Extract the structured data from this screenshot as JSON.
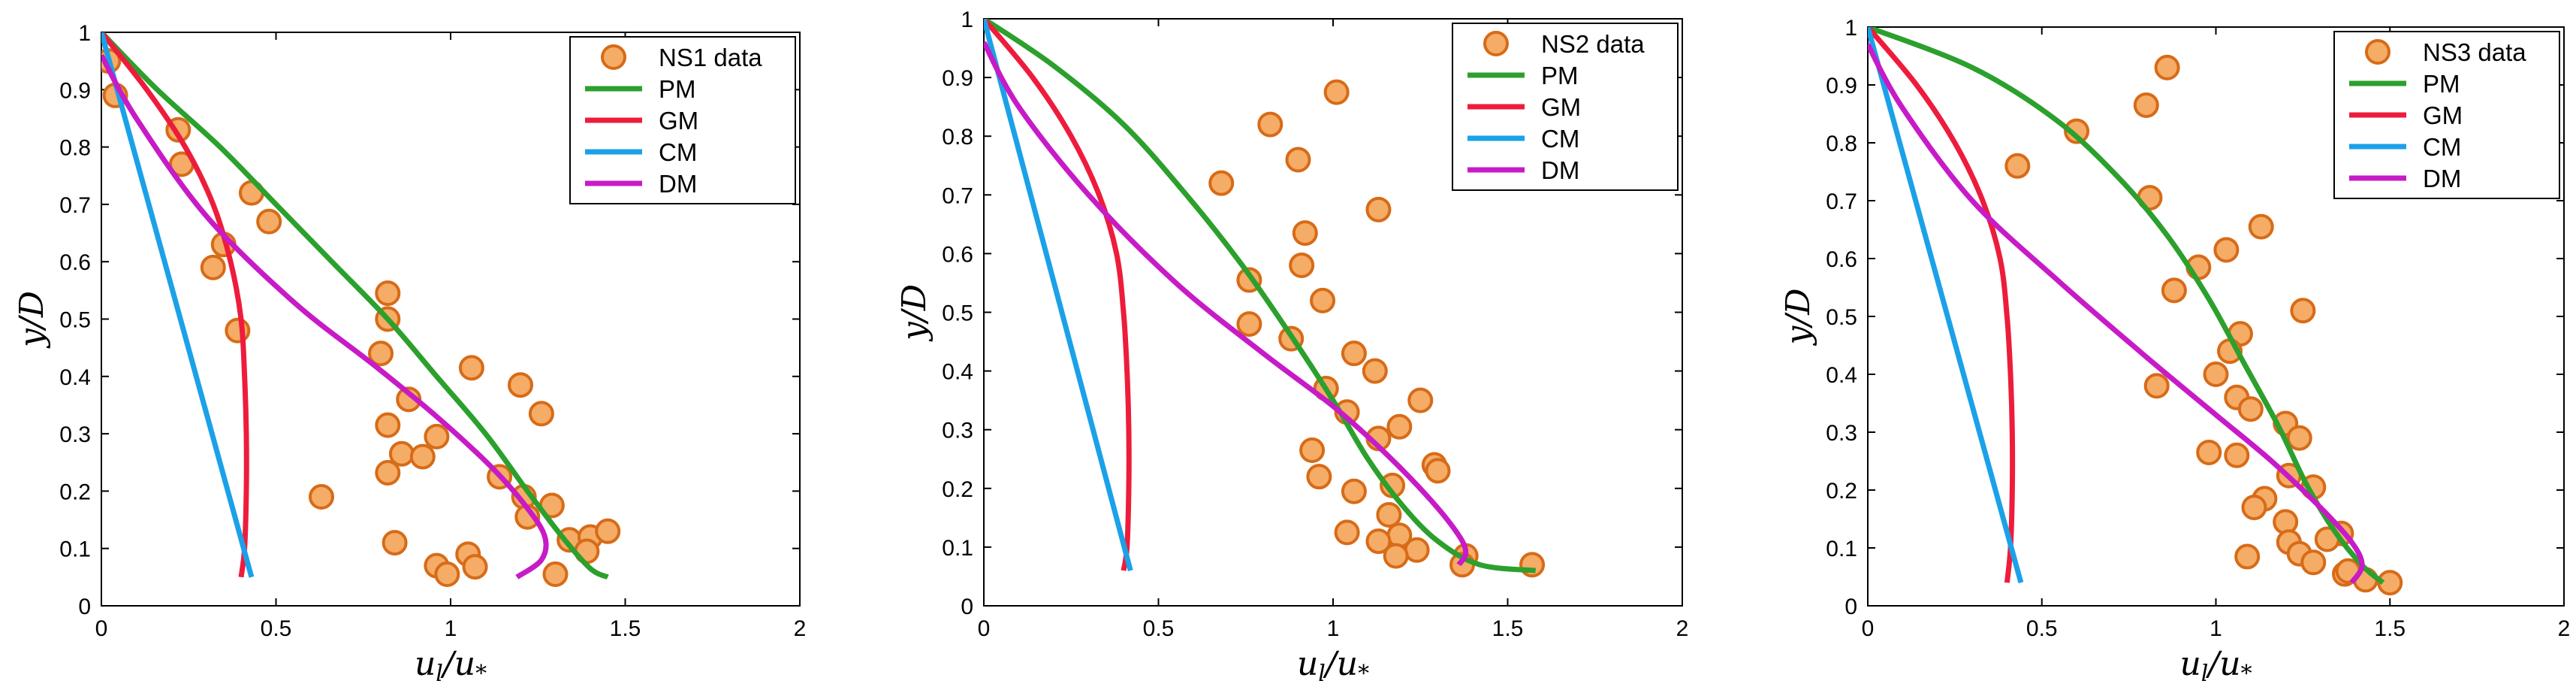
{
  "colors": {
    "PM": "#2ca02c",
    "GM": "#ee1c3c",
    "CM": "#1ba1e8",
    "DM": "#c71bc7",
    "marker_fill": "#f5ac66",
    "marker_edge": "#d76b18"
  },
  "chart_data": [
    {
      "type": "scatter",
      "xlabel": "u_l/u_*",
      "ylabel": "y/D",
      "xlim": [
        0,
        2
      ],
      "ylim": [
        0,
        1
      ],
      "xticks": [
        "0",
        "0.5",
        "1",
        "1.5",
        "2"
      ],
      "yticks": [
        "0",
        "0.1",
        "0.2",
        "0.3",
        "0.4",
        "0.5",
        "0.6",
        "0.7",
        "0.8",
        "0.9",
        "1"
      ],
      "legend": [
        "NS1 data",
        "PM",
        "GM",
        "CM",
        "DM"
      ],
      "legend_position": "top-right",
      "data": {
        "x": [
          0.02,
          0.04,
          0.22,
          0.23,
          0.43,
          0.48,
          0.35,
          0.32,
          0.39,
          0.82,
          0.82,
          0.8,
          0.88,
          0.82,
          0.86,
          0.92,
          0.96,
          0.82,
          0.63,
          1.06,
          1.2,
          1.26,
          1.14,
          1.21,
          1.22,
          1.29,
          1.34,
          1.4,
          1.45,
          1.39,
          1.05,
          0.84,
          0.96,
          0.99,
          1.07,
          1.3
        ],
        "y": [
          0.95,
          0.89,
          0.83,
          0.77,
          0.72,
          0.67,
          0.63,
          0.59,
          0.48,
          0.545,
          0.5,
          0.44,
          0.36,
          0.315,
          0.265,
          0.26,
          0.295,
          0.232,
          0.19,
          0.415,
          0.385,
          0.335,
          0.225,
          0.19,
          0.155,
          0.175,
          0.115,
          0.12,
          0.13,
          0.095,
          0.09,
          0.11,
          0.07,
          0.055,
          0.068,
          0.055
        ]
      },
      "series": [
        {
          "name": "PM",
          "x": [
            0,
            0.16,
            0.34,
            0.5,
            0.66,
            0.82,
            0.96,
            1.1,
            1.22,
            1.32,
            1.4,
            1.45
          ],
          "y": [
            1,
            0.9,
            0.8,
            0.7,
            0.6,
            0.5,
            0.4,
            0.3,
            0.2,
            0.12,
            0.065,
            0.05
          ]
        },
        {
          "name": "GM",
          "x": [
            0,
            0.13,
            0.24,
            0.32,
            0.37,
            0.4,
            0.41,
            0.415,
            0.415,
            0.41,
            0.4
          ],
          "y": [
            1,
            0.9,
            0.8,
            0.7,
            0.6,
            0.5,
            0.4,
            0.3,
            0.2,
            0.1,
            0.05
          ]
        },
        {
          "name": "CM",
          "x": [
            0,
            0.43
          ],
          "y": [
            1,
            0.05
          ]
        },
        {
          "name": "DM",
          "x": [
            0,
            0.1,
            0.3,
            0.55,
            0.78,
            0.96,
            1.12,
            1.22,
            1.27,
            1.26,
            1.19
          ],
          "y": [
            0.96,
            0.85,
            0.68,
            0.53,
            0.42,
            0.33,
            0.24,
            0.17,
            0.12,
            0.08,
            0.05
          ]
        }
      ]
    },
    {
      "type": "scatter",
      "xlabel": "u_l/u_*",
      "ylabel": "y/D",
      "xlim": [
        0,
        2
      ],
      "ylim": [
        0,
        1
      ],
      "xticks": [
        "0",
        "0.5",
        "1",
        "1.5",
        "2"
      ],
      "yticks": [
        "0",
        "0.1",
        "0.2",
        "0.3",
        "0.4",
        "0.5",
        "0.6",
        "0.7",
        "0.8",
        "0.9",
        "1"
      ],
      "legend": [
        "NS2 data",
        "PM",
        "GM",
        "CM",
        "DM"
      ],
      "legend_position": "top-right",
      "data": {
        "x": [
          1.01,
          0.82,
          0.9,
          0.68,
          1.13,
          0.92,
          0.76,
          0.91,
          0.97,
          0.76,
          0.88,
          1.06,
          1.12,
          0.98,
          1.04,
          1.25,
          1.19,
          1.13,
          0.94,
          1.29,
          0.96,
          1.3,
          1.17,
          1.06,
          1.16,
          1.04,
          1.19,
          1.24,
          1.13,
          1.18,
          1.38,
          1.57,
          1.37
        ],
        "y": [
          0.875,
          0.82,
          0.76,
          0.72,
          0.675,
          0.635,
          0.555,
          0.58,
          0.52,
          0.48,
          0.455,
          0.43,
          0.4,
          0.37,
          0.33,
          0.35,
          0.305,
          0.285,
          0.265,
          0.24,
          0.22,
          0.23,
          0.205,
          0.195,
          0.155,
          0.125,
          0.12,
          0.095,
          0.11,
          0.085,
          0.085,
          0.07,
          0.07
        ]
      },
      "series": [
        {
          "name": "PM",
          "x": [
            0,
            0.2,
            0.4,
            0.58,
            0.74,
            0.88,
            1.0,
            1.1,
            1.2,
            1.3,
            1.42,
            1.58
          ],
          "y": [
            1,
            0.92,
            0.82,
            0.7,
            0.58,
            0.46,
            0.35,
            0.25,
            0.17,
            0.11,
            0.07,
            0.06
          ]
        },
        {
          "name": "GM",
          "x": [
            0,
            0.14,
            0.25,
            0.33,
            0.38,
            0.4,
            0.41,
            0.415,
            0.415,
            0.41,
            0.4
          ],
          "y": [
            1,
            0.9,
            0.8,
            0.7,
            0.6,
            0.5,
            0.4,
            0.3,
            0.2,
            0.1,
            0.06
          ]
        },
        {
          "name": "CM",
          "x": [
            0,
            0.42
          ],
          "y": [
            1,
            0.06
          ]
        },
        {
          "name": "DM",
          "x": [
            0,
            0.1,
            0.3,
            0.55,
            0.8,
            1.0,
            1.15,
            1.28,
            1.36,
            1.38,
            1.36
          ],
          "y": [
            0.96,
            0.85,
            0.7,
            0.55,
            0.43,
            0.34,
            0.26,
            0.18,
            0.12,
            0.09,
            0.07
          ]
        }
      ]
    },
    {
      "type": "scatter",
      "xlabel": "u_l/u_*",
      "ylabel": "y/D",
      "xlim": [
        0,
        2
      ],
      "ylim": [
        0,
        1
      ],
      "xticks": [
        "0",
        "0.5",
        "1",
        "1.5",
        "2"
      ],
      "yticks": [
        "0",
        "0.1",
        "0.2",
        "0.3",
        "0.4",
        "0.5",
        "0.6",
        "0.7",
        "0.8",
        "0.9",
        "1"
      ],
      "legend": [
        "NS3 data",
        "PM",
        "GM",
        "CM",
        "DM"
      ],
      "legend_position": "top-right",
      "data": {
        "x": [
          0.86,
          0.8,
          0.6,
          0.43,
          0.81,
          1.13,
          0.95,
          1.03,
          0.88,
          1.25,
          1.07,
          1.04,
          1.0,
          0.83,
          1.06,
          1.1,
          1.2,
          1.24,
          0.98,
          1.06,
          1.21,
          1.28,
          1.14,
          1.11,
          1.2,
          1.36,
          1.32,
          1.21,
          1.09,
          1.24,
          1.28,
          1.37,
          1.43,
          1.5,
          1.38
        ],
        "y": [
          0.93,
          0.865,
          0.82,
          0.76,
          0.705,
          0.655,
          0.585,
          0.615,
          0.545,
          0.51,
          0.47,
          0.44,
          0.4,
          0.38,
          0.36,
          0.34,
          0.315,
          0.29,
          0.265,
          0.26,
          0.225,
          0.205,
          0.185,
          0.17,
          0.145,
          0.125,
          0.115,
          0.11,
          0.085,
          0.09,
          0.075,
          0.055,
          0.045,
          0.04,
          0.06
        ]
      },
      "series": [
        {
          "name": "PM",
          "x": [
            0,
            0.3,
            0.54,
            0.72,
            0.86,
            0.98,
            1.08,
            1.18,
            1.26,
            1.34,
            1.42,
            1.48
          ],
          "y": [
            1,
            0.93,
            0.84,
            0.74,
            0.64,
            0.53,
            0.42,
            0.31,
            0.21,
            0.13,
            0.07,
            0.04
          ]
        },
        {
          "name": "GM",
          "x": [
            0,
            0.14,
            0.25,
            0.33,
            0.38,
            0.4,
            0.41,
            0.415,
            0.415,
            0.41,
            0.4
          ],
          "y": [
            1,
            0.9,
            0.8,
            0.7,
            0.6,
            0.5,
            0.4,
            0.3,
            0.2,
            0.1,
            0.04
          ]
        },
        {
          "name": "CM",
          "x": [
            0,
            0.44
          ],
          "y": [
            1,
            0.04
          ]
        },
        {
          "name": "DM",
          "x": [
            0,
            0.1,
            0.3,
            0.55,
            0.8,
            1.0,
            1.16,
            1.3,
            1.39,
            1.42,
            1.39
          ],
          "y": [
            0.97,
            0.86,
            0.7,
            0.56,
            0.43,
            0.33,
            0.25,
            0.17,
            0.11,
            0.07,
            0.04
          ]
        }
      ]
    }
  ]
}
